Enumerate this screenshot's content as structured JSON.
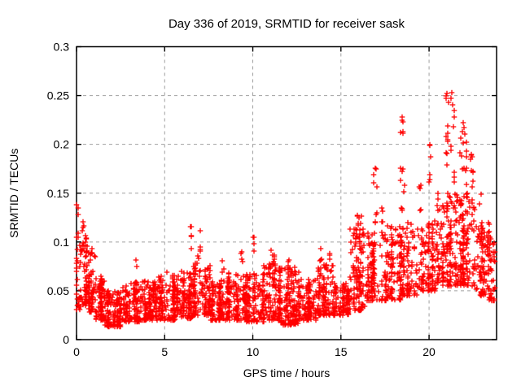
{
  "figure": {
    "background_color": "#ffffff",
    "border_color": "#000000",
    "text_color": "#000000"
  },
  "chart_data": {
    "type": "scatter",
    "title": "Day 336 of 2019, SRMTID for receiver sask",
    "xlabel": "GPS time / hours",
    "ylabel": "SRMTID / TECUs",
    "xlim": [
      0,
      23.83
    ],
    "ylim": [
      0,
      0.3
    ],
    "x_ticks": [
      0,
      5,
      10,
      15,
      20
    ],
    "x_tick_labels": [
      "0",
      "5",
      "10",
      "15",
      "20"
    ],
    "y_ticks": [
      0,
      0.05,
      0.1,
      0.15,
      0.2,
      0.25,
      0.3
    ],
    "y_tick_labels": [
      "0",
      "0.05",
      "0.1",
      "0.15",
      "0.2",
      "0.25",
      "0.3"
    ],
    "grid": {
      "visible": true,
      "color": "#a0a0a0",
      "dash": [
        4,
        4
      ]
    },
    "marker": {
      "shape": "plus",
      "size": 7,
      "color": "#ff0000"
    },
    "series_name": "SRMTID",
    "seed": 1336,
    "density_profile": [
      [
        0.0,
        0.25,
        26,
        0.03,
        0.1
      ],
      [
        0.25,
        0.7,
        60,
        0.035,
        0.108
      ],
      [
        0.7,
        1.1,
        62,
        0.028,
        0.092
      ],
      [
        1.1,
        1.6,
        80,
        0.02,
        0.065
      ],
      [
        1.6,
        2.6,
        150,
        0.013,
        0.05
      ],
      [
        2.6,
        3.6,
        130,
        0.018,
        0.06
      ],
      [
        3.6,
        4.6,
        130,
        0.02,
        0.06
      ],
      [
        4.6,
        5.6,
        130,
        0.02,
        0.066
      ],
      [
        5.6,
        6.6,
        130,
        0.022,
        0.07
      ],
      [
        6.6,
        7.6,
        130,
        0.025,
        0.078
      ],
      [
        7.6,
        8.6,
        130,
        0.02,
        0.062
      ],
      [
        8.6,
        9.6,
        130,
        0.02,
        0.068
      ],
      [
        9.6,
        10.6,
        130,
        0.018,
        0.068
      ],
      [
        10.6,
        11.6,
        140,
        0.02,
        0.078
      ],
      [
        11.6,
        12.6,
        140,
        0.015,
        0.075
      ],
      [
        12.6,
        13.6,
        130,
        0.02,
        0.062
      ],
      [
        13.6,
        14.6,
        120,
        0.025,
        0.078
      ],
      [
        14.6,
        15.5,
        100,
        0.025,
        0.058
      ],
      [
        15.5,
        16.4,
        115,
        0.03,
        0.115
      ],
      [
        16.4,
        17.4,
        115,
        0.04,
        0.11
      ],
      [
        17.4,
        18.4,
        115,
        0.04,
        0.118
      ],
      [
        18.4,
        19.4,
        115,
        0.045,
        0.12
      ],
      [
        19.4,
        20.4,
        115,
        0.05,
        0.122
      ],
      [
        20.4,
        21.6,
        145,
        0.055,
        0.15
      ],
      [
        21.6,
        22.6,
        135,
        0.055,
        0.15
      ],
      [
        22.6,
        23.4,
        95,
        0.045,
        0.12
      ],
      [
        23.4,
        23.8,
        38,
        0.04,
        0.105
      ]
    ],
    "spike_clusters": [
      [
        0.05,
        0.05,
        4,
        0.098,
        0.138
      ],
      [
        0.42,
        0.12,
        8,
        0.085,
        0.122
      ],
      [
        0.85,
        0.08,
        4,
        0.08,
        0.1
      ],
      [
        3.4,
        0.06,
        3,
        0.072,
        0.086
      ],
      [
        5.15,
        0.05,
        2,
        0.068,
        0.076
      ],
      [
        6.5,
        0.05,
        4,
        0.092,
        0.116
      ],
      [
        6.95,
        0.09,
        6,
        0.082,
        0.112
      ],
      [
        8.3,
        0.05,
        3,
        0.068,
        0.082
      ],
      [
        9.35,
        0.06,
        4,
        0.072,
        0.092
      ],
      [
        10.05,
        0.03,
        3,
        0.088,
        0.106
      ],
      [
        11.15,
        0.12,
        8,
        0.07,
        0.092
      ],
      [
        12.0,
        0.06,
        4,
        0.068,
        0.082
      ],
      [
        13.85,
        0.07,
        4,
        0.078,
        0.098
      ],
      [
        14.35,
        0.05,
        3,
        0.07,
        0.09
      ],
      [
        16.05,
        0.15,
        10,
        0.09,
        0.132
      ],
      [
        16.95,
        0.1,
        8,
        0.115,
        0.177
      ],
      [
        17.35,
        0.06,
        4,
        0.105,
        0.14
      ],
      [
        18.5,
        0.12,
        14,
        0.125,
        0.229
      ],
      [
        19.45,
        0.08,
        5,
        0.115,
        0.165
      ],
      [
        20.05,
        0.08,
        5,
        0.145,
        0.2
      ],
      [
        21.2,
        0.25,
        26,
        0.135,
        0.252
      ],
      [
        21.95,
        0.18,
        18,
        0.125,
        0.22
      ],
      [
        22.45,
        0.12,
        10,
        0.115,
        0.19
      ],
      [
        23.0,
        0.12,
        6,
        0.095,
        0.15
      ]
    ],
    "notable_points": [
      [
        0.0,
        0.138
      ],
      [
        0.0,
        0.105
      ],
      [
        0.35,
        0.121
      ],
      [
        6.5,
        0.116
      ],
      [
        10.0,
        0.105
      ],
      [
        16.95,
        0.176
      ],
      [
        18.45,
        0.228
      ],
      [
        20.05,
        0.199
      ],
      [
        21.3,
        0.253
      ],
      [
        21.45,
        0.235
      ],
      [
        21.95,
        0.222
      ],
      [
        22.4,
        0.19
      ]
    ]
  }
}
